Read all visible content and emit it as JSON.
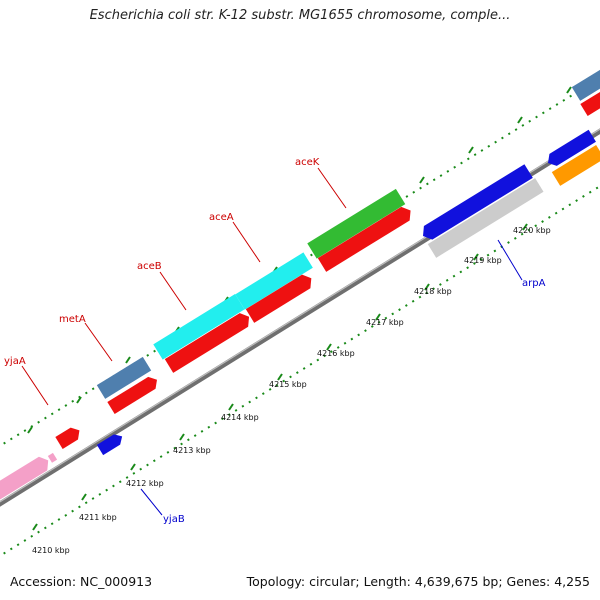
{
  "title": "Escherichia coli str. K-12 substr. MG1655 chromosome, comple...",
  "footer": {
    "accession": "Accession: NC_000913",
    "topology": "Topology: circular; Length: 4,639,675 bp; Genes: 4,255"
  },
  "scale_labels": [
    "4210 kbp",
    "4211 kbp",
    "4212 kbp",
    "4213 kbp",
    "4214 kbp",
    "4215 kbp",
    "4216 kbp",
    "4217 kbp",
    "4218 kbp",
    "4219 kbp",
    "4220 kbp"
  ],
  "gene_labels": {
    "yjaA": "yjaA",
    "metA": "metA",
    "aceB": "aceB",
    "aceA": "aceA",
    "aceK": "aceK",
    "yjaB": "yjaB",
    "arpA": "arpA"
  },
  "colors": {
    "backbone": "#8a8a8a",
    "tick": "#1a8a1a",
    "label_forward": "#cc0000",
    "label_reverse": "#0000cc",
    "red": "#ee1111",
    "blue": "#1111dd",
    "steelblue": "#4f7fae",
    "cyan": "#22eeee",
    "green": "#33bb33",
    "pink": "#f4a0c8",
    "gray": "#cccccc",
    "orange": "#ff9900"
  }
}
